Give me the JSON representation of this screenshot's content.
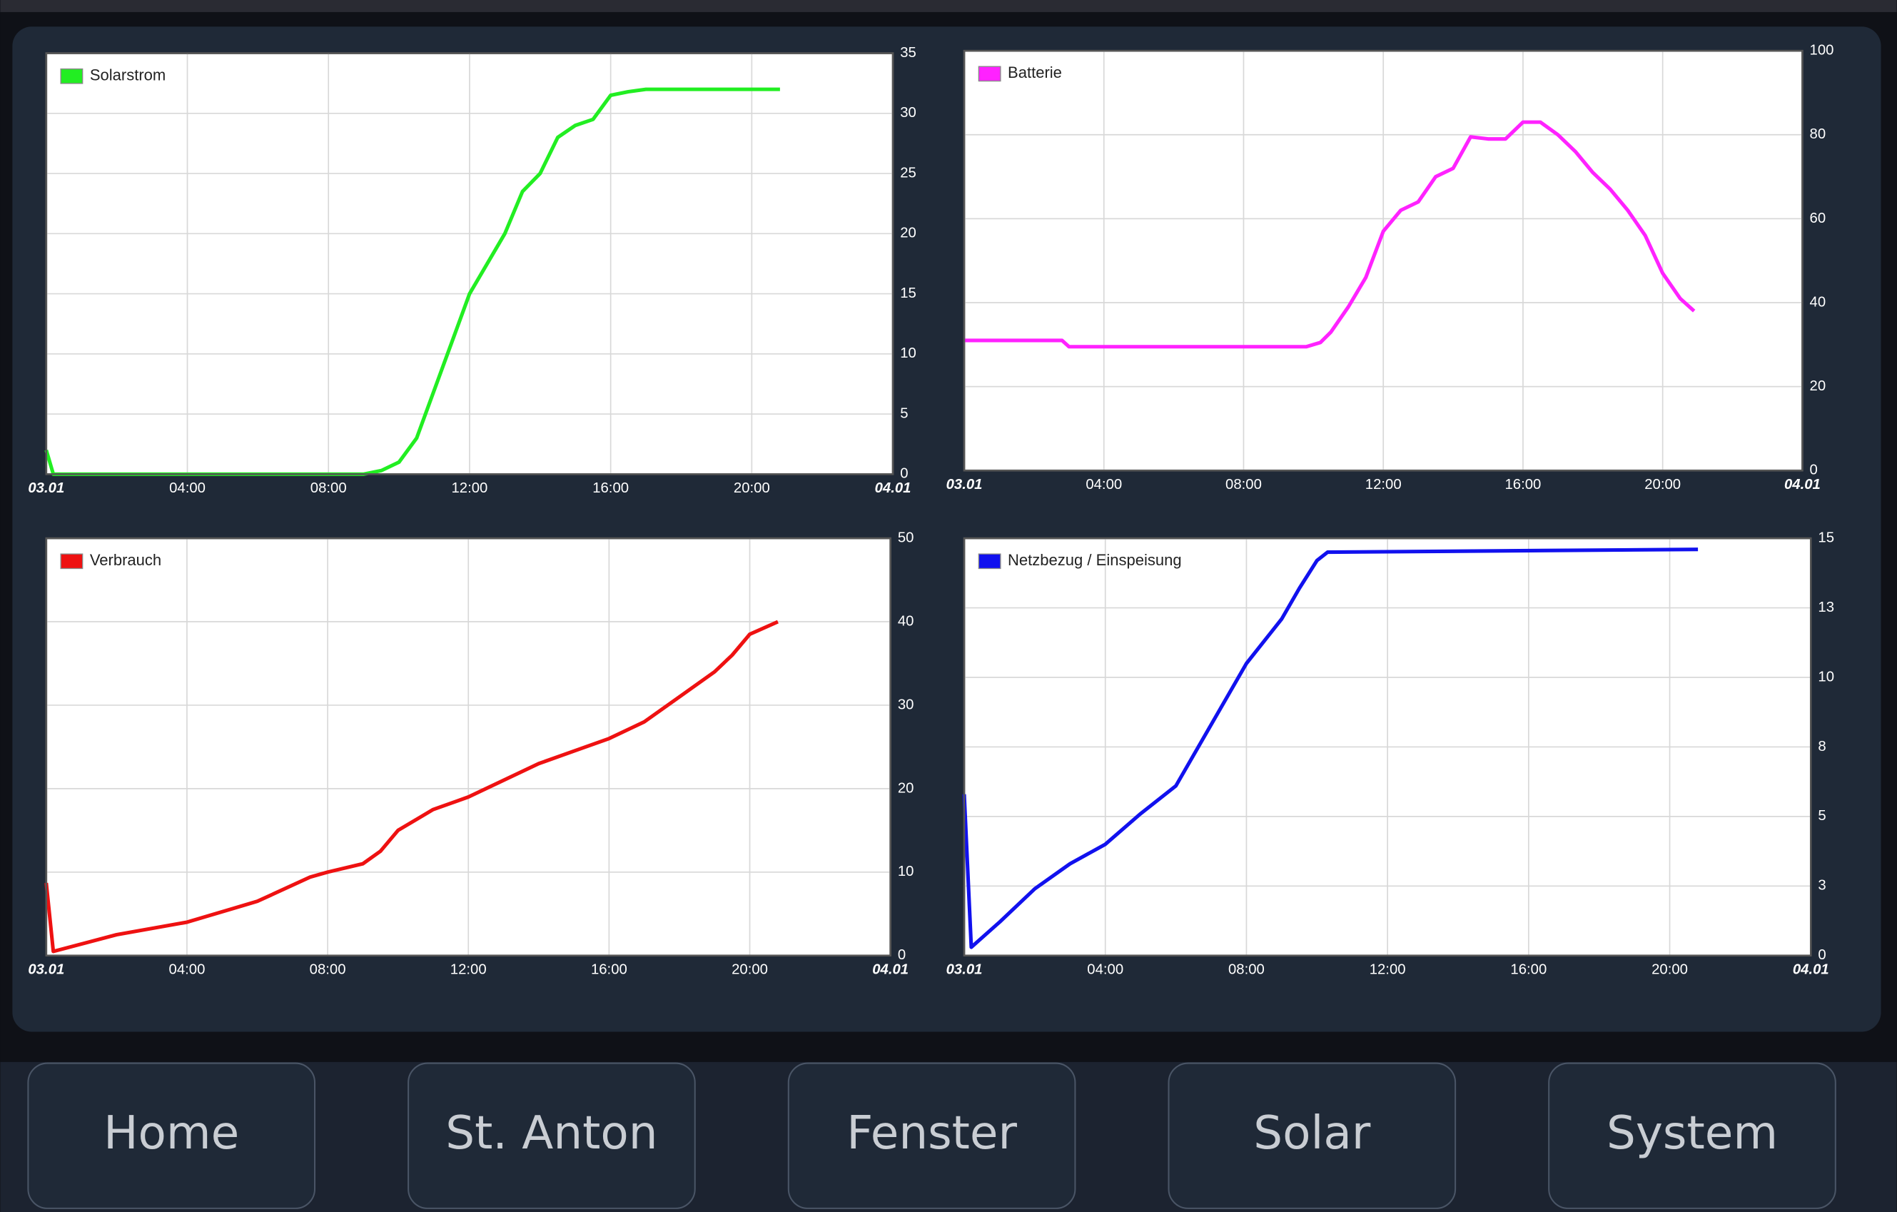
{
  "chart_data": [
    {
      "type": "line",
      "legend": "upper left",
      "grid": true,
      "x": [
        0,
        0.2,
        2,
        4,
        6,
        8,
        9,
        9.5,
        10,
        10.5,
        11,
        11.5,
        12,
        12.5,
        13,
        13.5,
        14,
        14.5,
        15,
        15.5,
        16,
        16.5,
        17,
        20.8
      ],
      "series": [
        {
          "name": "Solarstrom",
          "color": "#22ee22",
          "values": [
            2,
            0,
            0,
            0,
            0,
            0,
            0,
            0.3,
            1,
            3,
            7,
            11,
            15,
            17.5,
            20,
            23.5,
            25,
            28,
            29,
            29.5,
            31.5,
            31.8,
            32,
            32
          ]
        }
      ],
      "xlim": [
        0,
        24
      ],
      "xticks": [
        {
          "value": 0,
          "label": "03.01"
        },
        {
          "value": 4,
          "label": "04:00"
        },
        {
          "value": 8,
          "label": "08:00"
        },
        {
          "value": 12,
          "label": "12:00"
        },
        {
          "value": 16,
          "label": "16:00"
        },
        {
          "value": 20,
          "label": "20:00"
        },
        {
          "value": 24,
          "label": "04.01"
        }
      ],
      "ylim": [
        0,
        35
      ],
      "yticks": [
        0,
        5,
        10,
        15,
        20,
        25,
        30,
        35
      ]
    },
    {
      "type": "line",
      "legend": "upper left",
      "grid": true,
      "x": [
        0,
        2.8,
        3,
        9.8,
        10.2,
        10.5,
        11,
        11.5,
        12,
        12.5,
        13,
        13.5,
        14,
        14.5,
        15,
        15.5,
        16,
        16.5,
        17,
        17.5,
        18,
        18.5,
        19,
        19.5,
        20,
        20.5,
        20.9
      ],
      "series": [
        {
          "name": "Batterie",
          "color": "#ff22ff",
          "values": [
            31,
            31,
            29.5,
            29.5,
            30.5,
            33,
            39,
            46,
            57,
            62,
            64,
            70,
            72,
            79.5,
            79,
            79,
            83,
            83,
            80,
            76,
            71,
            67,
            62,
            56,
            47,
            41,
            38
          ]
        }
      ],
      "xlim": [
        0,
        24
      ],
      "xticks": [
        {
          "value": 0,
          "label": "03.01"
        },
        {
          "value": 4,
          "label": "04:00"
        },
        {
          "value": 8,
          "label": "08:00"
        },
        {
          "value": 12,
          "label": "12:00"
        },
        {
          "value": 16,
          "label": "16:00"
        },
        {
          "value": 20,
          "label": "20:00"
        },
        {
          "value": 24,
          "label": "04.01"
        }
      ],
      "ylim": [
        0,
        100
      ],
      "yticks": [
        0,
        20,
        40,
        60,
        80,
        100
      ]
    },
    {
      "type": "line",
      "legend": "upper left",
      "grid": true,
      "x": [
        0,
        0.2,
        2,
        4,
        6,
        7.5,
        8,
        9,
        9.5,
        10,
        11,
        12,
        13,
        14,
        15,
        16,
        17,
        18,
        19,
        19.5,
        20,
        20.8
      ],
      "series": [
        {
          "name": "Verbrauch",
          "color": "#ee1111",
          "values": [
            8.7,
            0.5,
            2.5,
            4,
            6.5,
            9.4,
            10,
            11,
            12.5,
            15,
            17.5,
            19,
            21,
            23,
            24.5,
            26,
            28,
            31,
            34,
            36,
            38.5,
            40
          ]
        }
      ],
      "xlim": [
        0,
        24
      ],
      "xticks": [
        {
          "value": 0,
          "label": "03.01"
        },
        {
          "value": 4,
          "label": "04:00"
        },
        {
          "value": 8,
          "label": "08:00"
        },
        {
          "value": 12,
          "label": "12:00"
        },
        {
          "value": 16,
          "label": "16:00"
        },
        {
          "value": 20,
          "label": "20:00"
        },
        {
          "value": 24,
          "label": "04.01"
        }
      ],
      "ylim": [
        0,
        50
      ],
      "yticks": [
        0,
        10,
        20,
        30,
        40,
        50
      ]
    },
    {
      "type": "line",
      "legend": "upper left",
      "grid": true,
      "x": [
        0,
        0.2,
        1,
        2,
        3,
        4,
        5,
        6,
        7,
        8,
        9,
        9.5,
        10,
        10.3,
        20.8
      ],
      "series": [
        {
          "name": "Netzbezug / Einspeisung",
          "color": "#1111ee",
          "values": [
            5.8,
            0.3,
            1.2,
            2.4,
            3.3,
            4,
            5.1,
            6.1,
            8.3,
            10.5,
            12.1,
            13.2,
            14.2,
            14.5,
            14.6
          ]
        }
      ],
      "xlim": [
        0,
        24
      ],
      "xticks": [
        {
          "value": 0,
          "label": "03.01"
        },
        {
          "value": 4,
          "label": "04:00"
        },
        {
          "value": 8,
          "label": "08:00"
        },
        {
          "value": 12,
          "label": "12:00"
        },
        {
          "value": 16,
          "label": "16:00"
        },
        {
          "value": 20,
          "label": "20:00"
        },
        {
          "value": 24,
          "label": "04.01"
        }
      ],
      "ylim": [
        0,
        15
      ],
      "yticks": [
        0,
        {
          "value": 2.5,
          "label": "3"
        },
        5,
        {
          "value": 7.5,
          "label": "8"
        },
        10,
        {
          "value": 12.5,
          "label": "13"
        },
        15
      ]
    }
  ],
  "nav": [
    "Home",
    "St. Anton",
    "Fenster",
    "Solar",
    "System"
  ]
}
